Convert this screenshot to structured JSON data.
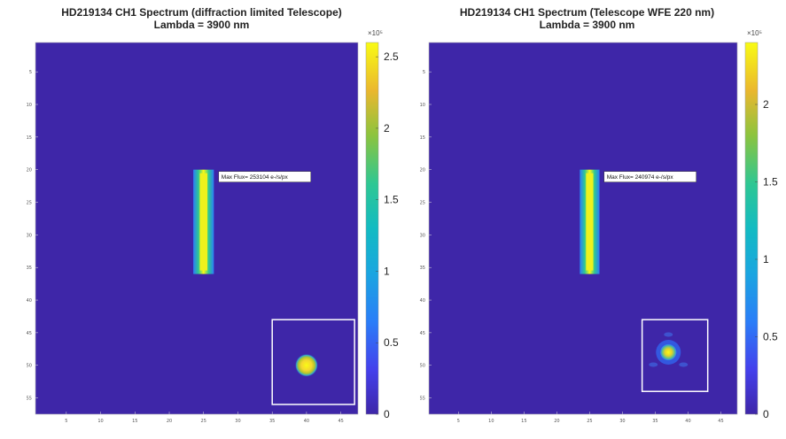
{
  "chart_data": [
    {
      "type": "heatmap",
      "title": "HD219134 CH1 Spectrum (diffraction limited Telescope)",
      "subtitle": "Lambda = 3900 nm",
      "yticks": [
        "5",
        "10",
        "15",
        "20",
        "25",
        "30",
        "35",
        "40",
        "45",
        "50",
        "55"
      ],
      "xticks": [
        "5",
        "10",
        "15",
        "20",
        "25",
        "30",
        "35",
        "40",
        "45"
      ],
      "xlim": [
        0.5,
        47.5
      ],
      "ylim": [
        0.5,
        57.5
      ],
      "colorbar": {
        "ticks": [
          "0",
          "0.5",
          "1",
          "1.5",
          "2",
          "2.5"
        ],
        "tick_values": [
          0,
          0.5,
          1,
          1.5,
          2,
          2.5
        ],
        "max": 2.6,
        "exponent": "×10⁵"
      },
      "spectrum": {
        "x": 25,
        "y_start": 20,
        "y_end": 36,
        "peak": 253104
      },
      "annotation": "Max Flux= 253104 e-/s/px",
      "psf_inset": {
        "box_x": [
          35,
          47
        ],
        "box_y": [
          43,
          56
        ],
        "center": [
          40,
          50
        ],
        "aberrated": false
      }
    },
    {
      "type": "heatmap",
      "title": "HD219134 CH1 Spectrum (Telescope WFE 220 nm)",
      "subtitle": "Lambda = 3900 nm",
      "yticks": [
        "5",
        "10",
        "15",
        "20",
        "25",
        "30",
        "35",
        "40",
        "45",
        "50",
        "55"
      ],
      "xticks": [
        "5",
        "10",
        "15",
        "20",
        "25",
        "30",
        "35",
        "40",
        "45"
      ],
      "xlim": [
        0.5,
        47.5
      ],
      "ylim": [
        0.5,
        57.5
      ],
      "colorbar": {
        "ticks": [
          "0",
          "0.5",
          "1",
          "1.5",
          "2"
        ],
        "tick_values": [
          0,
          0.5,
          1,
          1.5,
          2
        ],
        "max": 2.4,
        "exponent": "×10⁵"
      },
      "spectrum": {
        "x": 25,
        "y_start": 20,
        "y_end": 36,
        "peak": 240974
      },
      "annotation": "Max Flux= 240974 e-/s/px",
      "psf_inset": {
        "box_x": [
          33,
          43
        ],
        "box_y": [
          43,
          54
        ],
        "center": [
          37,
          48
        ],
        "aberrated": true
      }
    }
  ]
}
